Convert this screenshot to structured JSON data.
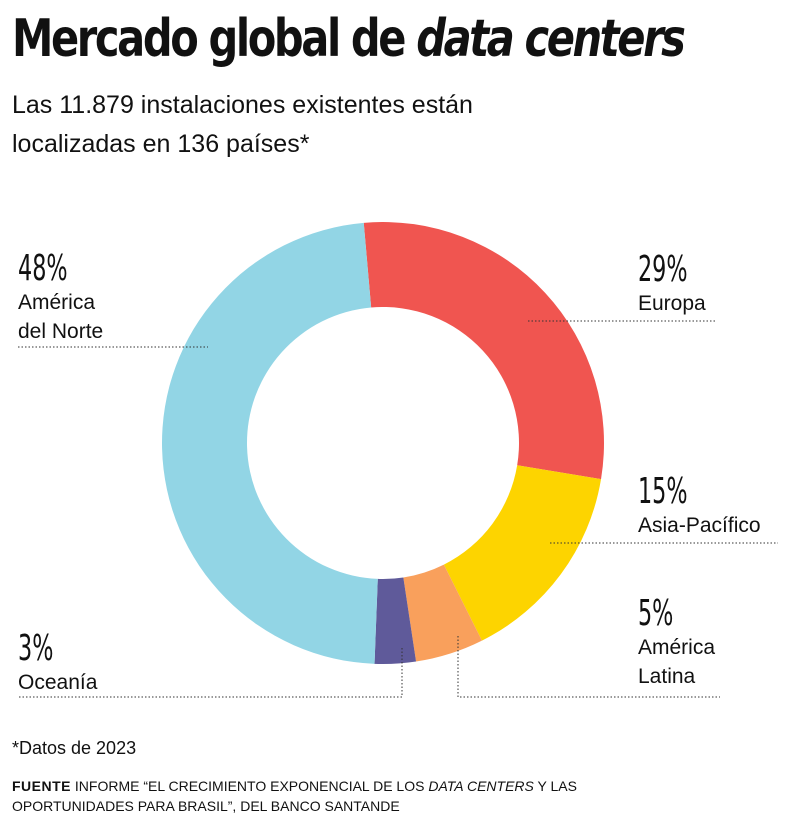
{
  "header": {
    "title_main": "Mercado global de ",
    "title_italic": "data centers",
    "subtitle_line1": "Las 11.879 instalaciones existentes están",
    "subtitle_line2": "localizadas en 136 países*"
  },
  "chart_data": {
    "type": "pie",
    "donut": true,
    "unit": "%",
    "slices": [
      {
        "label_lines": [
          "Europa"
        ],
        "value": 29,
        "pct_text": "29%",
        "color": "#f05550"
      },
      {
        "label_lines": [
          "Asia-Pacífico"
        ],
        "value": 15,
        "pct_text": "15%",
        "color": "#fdd400"
      },
      {
        "label_lines": [
          "América",
          "Latina"
        ],
        "value": 5,
        "pct_text": "5%",
        "color": "#f9a05c"
      },
      {
        "label_lines": [
          "Oceanía"
        ],
        "value": 3,
        "pct_text": "3%",
        "color": "#5f5a9a"
      },
      {
        "label_lines": [
          "América",
          "del Norte"
        ],
        "value": 48,
        "pct_text": "48%",
        "color": "#92d5e5"
      }
    ]
  },
  "footer": {
    "note": "*Datos de 2023",
    "source_label": "FUENTE",
    "source_text_1": " INFORME “EL CRECIMIENTO EXPONENCIAL DE LOS ",
    "source_italic": "DATA CENTERS",
    "source_text_2": " Y LAS OPORTUNIDADES PARA BRASIL”, DEL BANCO SANTANDE"
  }
}
